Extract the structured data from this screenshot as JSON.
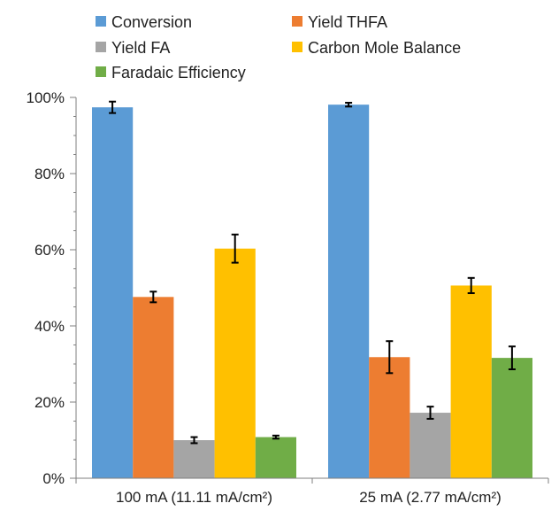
{
  "chart_data": {
    "type": "bar",
    "categories": [
      "100 mA (11.11 mA/cm²)",
      "25 mA (2.77 mA/cm²)"
    ],
    "series": [
      {
        "name": "Conversion",
        "color": "#5B9BD5",
        "values": [
          97.4,
          98.1
        ],
        "errors": [
          1.5,
          0.5
        ]
      },
      {
        "name": "Yield THFA",
        "color": "#ED7D31",
        "values": [
          47.6,
          31.8
        ],
        "errors": [
          1.4,
          4.2
        ]
      },
      {
        "name": "Yield FA",
        "color": "#A5A5A5",
        "values": [
          10.0,
          17.2
        ],
        "errors": [
          0.8,
          1.6
        ]
      },
      {
        "name": "Carbon Mole Balance",
        "color": "#FFC000",
        "values": [
          60.3,
          50.6
        ],
        "errors": [
          3.7,
          2.0
        ]
      },
      {
        "name": "Faradaic Efficiency",
        "color": "#70AD47",
        "values": [
          10.8,
          31.6
        ],
        "errors": [
          0.4,
          3.0
        ]
      }
    ],
    "ylim": [
      0,
      100
    ],
    "yticks": [
      0,
      20,
      40,
      60,
      80,
      100
    ],
    "ytick_labels": [
      "0%",
      "20%",
      "40%",
      "60%",
      "80%",
      "100%"
    ],
    "minor_tick_step": 5,
    "title": "",
    "xlabel": "",
    "ylabel": "",
    "grid": false,
    "legend_position": "top"
  }
}
